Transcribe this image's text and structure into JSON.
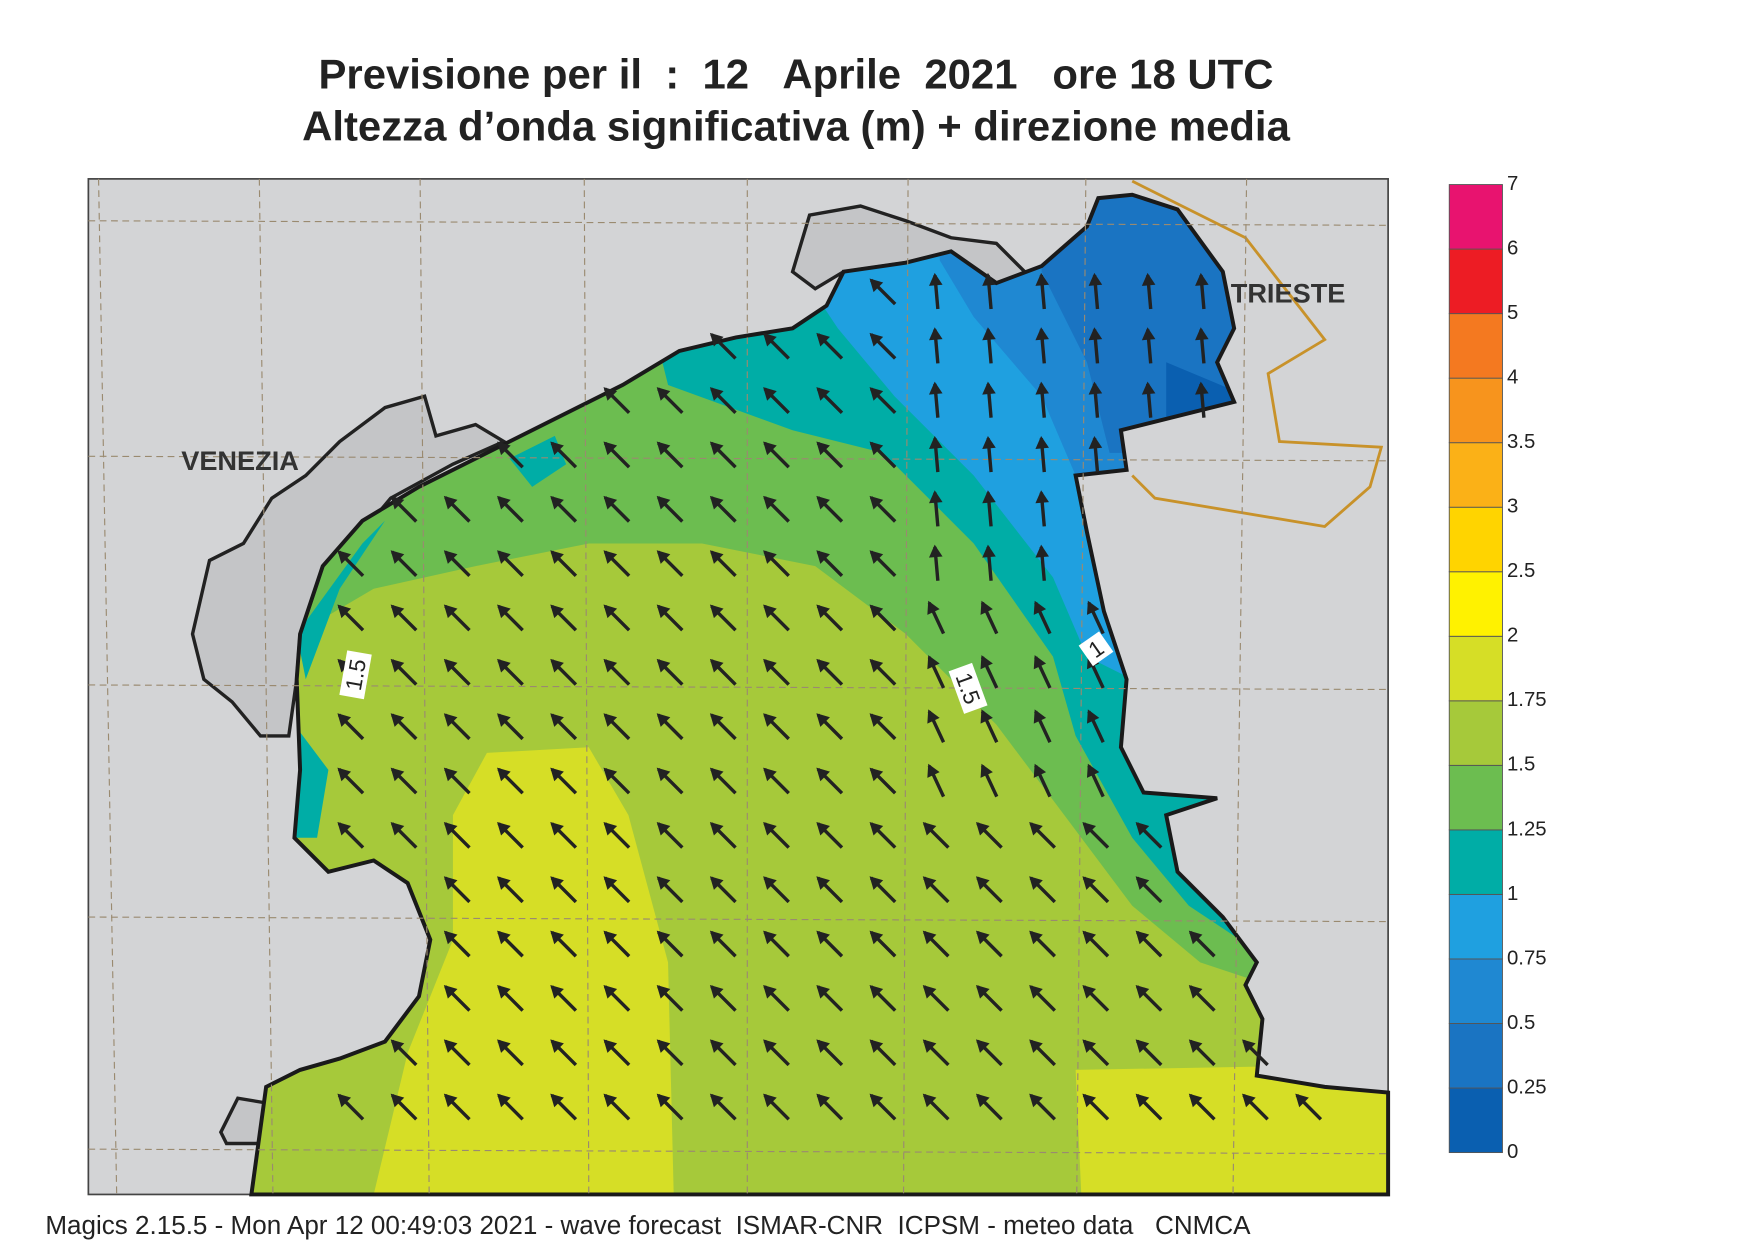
{
  "header": {
    "title": "Previsione per il  :  12   Aprile  2021   ore 18 UTC",
    "subtitle": "Altezza d’onda significativa (m) + direzione media"
  },
  "map": {
    "cities": [
      "VENEZIA",
      "TRIESTE"
    ],
    "contour_labels": [
      "1.5",
      "1.5",
      "1"
    ]
  },
  "legend": {
    "ticks": [
      0,
      0.25,
      0.5,
      0.75,
      1,
      1.25,
      1.5,
      1.75,
      2,
      2.5,
      3,
      3.5,
      4,
      5,
      6,
      7
    ],
    "colors": [
      "#0a5fb0",
      "#1a74c2",
      "#1f88d2",
      "#1fa0e0",
      "#00ada6",
      "#6cbd50",
      "#a6c93a",
      "#d6de26",
      "#fff200",
      "#ffd400",
      "#fbb117",
      "#f7941d",
      "#f47920",
      "#ed1c24",
      "#e8136f"
    ]
  },
  "footer": "Magics 2.15.5 - Mon Apr 12 00:49:03 2021 - wave forecast  ISMAR-CNR  ICPSM - meteo data   CNMCA"
}
